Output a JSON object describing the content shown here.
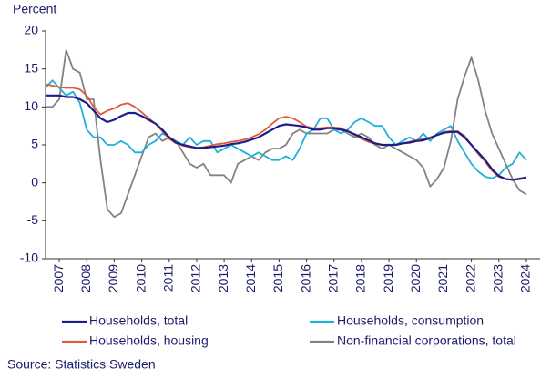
{
  "chart_data": {
    "type": "line",
    "y_label": "Percent",
    "source": "Source: Statistics Sweden",
    "x": [
      2007,
      2007.25,
      2007.5,
      2007.75,
      2008,
      2008.25,
      2008.5,
      2008.75,
      2009,
      2009.25,
      2009.5,
      2009.75,
      2010,
      2010.25,
      2010.5,
      2010.75,
      2011,
      2011.25,
      2011.5,
      2011.75,
      2012,
      2012.25,
      2012.5,
      2012.75,
      2013,
      2013.25,
      2013.5,
      2013.75,
      2014,
      2014.25,
      2014.5,
      2014.75,
      2015,
      2015.25,
      2015.5,
      2015.75,
      2016,
      2016.25,
      2016.5,
      2016.75,
      2017,
      2017.25,
      2017.5,
      2017.75,
      2018,
      2018.25,
      2018.5,
      2018.75,
      2019,
      2019.25,
      2019.5,
      2019.75,
      2020,
      2020.25,
      2020.5,
      2020.75,
      2021,
      2021.25,
      2021.5,
      2021.75,
      2022,
      2022.25,
      2022.5,
      2022.75,
      2023,
      2023.25,
      2023.5,
      2023.75,
      2024,
      2024.25,
      2024.5
    ],
    "xlim": [
      2007,
      2025
    ],
    "xticks": [
      {
        "value": 2007.5,
        "label": "2007"
      },
      {
        "value": 2008.5,
        "label": "2008"
      },
      {
        "value": 2009.5,
        "label": "2009"
      },
      {
        "value": 2010.5,
        "label": "2010"
      },
      {
        "value": 2011.5,
        "label": "2011"
      },
      {
        "value": 2012.5,
        "label": "2012"
      },
      {
        "value": 2013.5,
        "label": "2013"
      },
      {
        "value": 2014.5,
        "label": "2014"
      },
      {
        "value": 2015.5,
        "label": "2015"
      },
      {
        "value": 2016.5,
        "label": "2016"
      },
      {
        "value": 2017.5,
        "label": "2017"
      },
      {
        "value": 2018.5,
        "label": "2018"
      },
      {
        "value": 2019.5,
        "label": "2019"
      },
      {
        "value": 2020.5,
        "label": "2020"
      },
      {
        "value": 2021.5,
        "label": "2021"
      },
      {
        "value": 2022.5,
        "label": "2022"
      },
      {
        "value": 2023.5,
        "label": "2023"
      },
      {
        "value": 2024.5,
        "label": "2024"
      }
    ],
    "ylim": [
      -10,
      20
    ],
    "yticks": [
      -10,
      -5,
      0,
      5,
      10,
      15,
      20
    ],
    "series": [
      {
        "name": "Households, total",
        "color": "#1c1c8c",
        "values": [
          11.5,
          11.5,
          11.5,
          11.3,
          11.3,
          11.0,
          10.5,
          9.5,
          8.5,
          8.0,
          8.3,
          8.8,
          9.2,
          9.2,
          8.8,
          8.3,
          7.8,
          7.0,
          6.0,
          5.3,
          5.0,
          4.8,
          4.6,
          4.6,
          4.7,
          4.8,
          4.9,
          5.1,
          5.2,
          5.4,
          5.7,
          6.0,
          6.5,
          7.0,
          7.5,
          7.7,
          7.6,
          7.5,
          7.3,
          7.0,
          7.0,
          7.2,
          7.2,
          7.0,
          6.8,
          6.4,
          6.0,
          5.6,
          5.2,
          5.0,
          5.0,
          5.0,
          5.2,
          5.3,
          5.5,
          5.6,
          5.9,
          6.3,
          6.6,
          6.7,
          6.7,
          6.0,
          5.0,
          4.0,
          3.0,
          1.8,
          0.9,
          0.5,
          0.4,
          0.5,
          0.7
        ]
      },
      {
        "name": "Households, consumption",
        "color": "#1eb0d8",
        "values": [
          12.5,
          13.5,
          12.5,
          11.5,
          12.0,
          10.5,
          7.0,
          6.0,
          6.0,
          5.0,
          5.0,
          5.5,
          5.0,
          4.0,
          4.0,
          5.0,
          5.5,
          6.5,
          6.0,
          5.5,
          5.0,
          6.0,
          5.0,
          5.5,
          5.5,
          4.0,
          4.5,
          5.0,
          4.5,
          4.0,
          3.5,
          4.0,
          3.5,
          3.0,
          3.0,
          3.5,
          3.0,
          4.5,
          6.5,
          7.0,
          8.5,
          8.5,
          7.0,
          6.5,
          7.0,
          8.0,
          8.5,
          8.0,
          7.5,
          7.5,
          6.0,
          5.0,
          5.5,
          6.0,
          5.5,
          6.5,
          5.5,
          6.5,
          7.0,
          7.5,
          5.5,
          4.0,
          2.5,
          1.5,
          0.8,
          0.6,
          1.0,
          2.0,
          2.5,
          4.0,
          3.0
        ]
      },
      {
        "name": "Households, housing",
        "color": "#e2593a",
        "values": [
          13.0,
          12.8,
          12.6,
          12.5,
          12.5,
          12.3,
          11.5,
          10.0,
          9.0,
          9.5,
          9.8,
          10.3,
          10.5,
          10.0,
          9.3,
          8.5,
          7.8,
          6.8,
          5.8,
          5.2,
          4.9,
          4.7,
          4.6,
          4.7,
          4.9,
          5.1,
          5.2,
          5.4,
          5.5,
          5.7,
          6.0,
          6.4,
          7.0,
          7.8,
          8.5,
          8.7,
          8.5,
          8.0,
          7.4,
          7.2,
          7.2,
          7.3,
          7.3,
          7.2,
          6.8,
          6.3,
          5.8,
          5.4,
          5.1,
          5.0,
          5.0,
          5.0,
          5.2,
          5.4,
          5.6,
          5.8,
          6.0,
          6.3,
          6.7,
          6.8,
          6.8,
          6.2,
          5.0,
          3.8,
          2.8,
          1.6,
          0.8,
          0.5,
          0.4,
          0.6,
          0.7
        ]
      },
      {
        "name": "Non-financial corporations, total",
        "color": "#828282",
        "values": [
          10.0,
          10.0,
          11.0,
          17.5,
          15.0,
          14.5,
          11.0,
          11.0,
          3.0,
          -3.5,
          -4.5,
          -4.0,
          -1.5,
          1.0,
          3.5,
          6.0,
          6.5,
          5.5,
          6.0,
          5.5,
          4.0,
          2.5,
          2.0,
          2.5,
          1.0,
          1.0,
          1.0,
          0.0,
          2.5,
          3.0,
          3.5,
          3.0,
          4.0,
          4.5,
          4.5,
          5.0,
          6.5,
          7.0,
          6.5,
          6.5,
          6.5,
          6.5,
          7.0,
          7.0,
          6.5,
          6.0,
          6.5,
          6.0,
          5.0,
          4.5,
          5.0,
          4.5,
          4.0,
          3.5,
          3.0,
          2.0,
          -0.5,
          0.5,
          2.0,
          5.5,
          11.0,
          14.0,
          16.5,
          13.5,
          9.5,
          6.5,
          4.5,
          2.5,
          0.5,
          -1.0,
          -1.5
        ]
      }
    ]
  }
}
